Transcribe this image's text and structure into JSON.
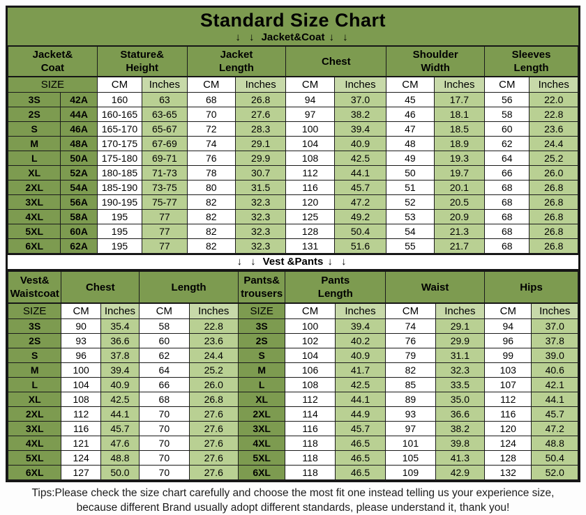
{
  "page": {
    "title": "Standard Size Chart",
    "arrow_pair": "↓ ↓",
    "jacket_section_label": "Jacket&Coat",
    "vest_section_label": "Vest &Pants",
    "tips_line1": "Tips:Please check the size chart carefully and choose the most fit one instead telling us your experience size,",
    "tips_line2": "because different Brand usually adopt different standards, please understand it, thank you!"
  },
  "colors": {
    "band_green": "#7d9b50",
    "inches_light_green": "#b9d093",
    "cm_white": "#ffffff",
    "grid_black": "#1a1a1a"
  },
  "labels": {
    "size": "SIZE",
    "cm": "CM",
    "inches": "Inches"
  },
  "jacket_table": {
    "group_headers": [
      {
        "line1": "Jacket&",
        "line2": "Coat"
      },
      {
        "line1": "Stature&",
        "line2": "Height"
      },
      {
        "line1": "Jacket",
        "line2": "Length"
      },
      {
        "line1": "Chest",
        "line2": ""
      },
      {
        "line1": "Shoulder",
        "line2": "Width"
      },
      {
        "line1": "Sleeves",
        "line2": "Length"
      }
    ],
    "rows": [
      {
        "size": "3S",
        "code": "42A",
        "values": [
          "160",
          "63",
          "68",
          "26.8",
          "94",
          "37.0",
          "45",
          "17.7",
          "56",
          "22.0"
        ]
      },
      {
        "size": "2S",
        "code": "44A",
        "values": [
          "160-165",
          "63-65",
          "70",
          "27.6",
          "97",
          "38.2",
          "46",
          "18.1",
          "58",
          "22.8"
        ]
      },
      {
        "size": "S",
        "code": "46A",
        "values": [
          "165-170",
          "65-67",
          "72",
          "28.3",
          "100",
          "39.4",
          "47",
          "18.5",
          "60",
          "23.6"
        ]
      },
      {
        "size": "M",
        "code": "48A",
        "values": [
          "170-175",
          "67-69",
          "74",
          "29.1",
          "104",
          "40.9",
          "48",
          "18.9",
          "62",
          "24.4"
        ]
      },
      {
        "size": "L",
        "code": "50A",
        "values": [
          "175-180",
          "69-71",
          "76",
          "29.9",
          "108",
          "42.5",
          "49",
          "19.3",
          "64",
          "25.2"
        ]
      },
      {
        "size": "XL",
        "code": "52A",
        "values": [
          "180-185",
          "71-73",
          "78",
          "30.7",
          "112",
          "44.1",
          "50",
          "19.7",
          "66",
          "26.0"
        ]
      },
      {
        "size": "2XL",
        "code": "54A",
        "values": [
          "185-190",
          "73-75",
          "80",
          "31.5",
          "116",
          "45.7",
          "51",
          "20.1",
          "68",
          "26.8"
        ]
      },
      {
        "size": "3XL",
        "code": "56A",
        "values": [
          "190-195",
          "75-77",
          "82",
          "32.3",
          "120",
          "47.2",
          "52",
          "20.5",
          "68",
          "26.8"
        ]
      },
      {
        "size": "4XL",
        "code": "58A",
        "values": [
          "195",
          "77",
          "82",
          "32.3",
          "125",
          "49.2",
          "53",
          "20.9",
          "68",
          "26.8"
        ]
      },
      {
        "size": "5XL",
        "code": "60A",
        "values": [
          "195",
          "77",
          "82",
          "32.3",
          "128",
          "50.4",
          "54",
          "21.3",
          "68",
          "26.8"
        ]
      },
      {
        "size": "6XL",
        "code": "62A",
        "values": [
          "195",
          "77",
          "82",
          "32.3",
          "131",
          "51.6",
          "55",
          "21.7",
          "68",
          "26.8"
        ]
      }
    ]
  },
  "vest_table": {
    "group_headers": [
      {
        "line1": "Vest&",
        "line2": "Waistcoat"
      },
      {
        "line1": "Chest",
        "line2": ""
      },
      {
        "line1": "Length",
        "line2": ""
      },
      {
        "line1": "Pants&",
        "line2": "trousers"
      },
      {
        "line1": "Pants",
        "line2": "Length"
      },
      {
        "line1": "Waist",
        "line2": ""
      },
      {
        "line1": "Hips",
        "line2": ""
      }
    ],
    "rows": [
      {
        "size": "3S",
        "vest_values": [
          "90",
          "35.4",
          "58",
          "22.8"
        ],
        "pants_size": "3S",
        "pants_values": [
          "100",
          "39.4",
          "74",
          "29.1",
          "94",
          "37.0"
        ]
      },
      {
        "size": "2S",
        "vest_values": [
          "93",
          "36.6",
          "60",
          "23.6"
        ],
        "pants_size": "2S",
        "pants_values": [
          "102",
          "40.2",
          "76",
          "29.9",
          "96",
          "37.8"
        ]
      },
      {
        "size": "S",
        "vest_values": [
          "96",
          "37.8",
          "62",
          "24.4"
        ],
        "pants_size": "S",
        "pants_values": [
          "104",
          "40.9",
          "79",
          "31.1",
          "99",
          "39.0"
        ]
      },
      {
        "size": "M",
        "vest_values": [
          "100",
          "39.4",
          "64",
          "25.2"
        ],
        "pants_size": "M",
        "pants_values": [
          "106",
          "41.7",
          "82",
          "32.3",
          "103",
          "40.6"
        ]
      },
      {
        "size": "L",
        "vest_values": [
          "104",
          "40.9",
          "66",
          "26.0"
        ],
        "pants_size": "L",
        "pants_values": [
          "108",
          "42.5",
          "85",
          "33.5",
          "107",
          "42.1"
        ]
      },
      {
        "size": "XL",
        "vest_values": [
          "108",
          "42.5",
          "68",
          "26.8"
        ],
        "pants_size": "XL",
        "pants_values": [
          "112",
          "44.1",
          "89",
          "35.0",
          "112",
          "44.1"
        ]
      },
      {
        "size": "2XL",
        "vest_values": [
          "112",
          "44.1",
          "70",
          "27.6"
        ],
        "pants_size": "2XL",
        "pants_values": [
          "114",
          "44.9",
          "93",
          "36.6",
          "116",
          "45.7"
        ]
      },
      {
        "size": "3XL",
        "vest_values": [
          "116",
          "45.7",
          "70",
          "27.6"
        ],
        "pants_size": "3XL",
        "pants_values": [
          "116",
          "45.7",
          "97",
          "38.2",
          "120",
          "47.2"
        ]
      },
      {
        "size": "4XL",
        "vest_values": [
          "121",
          "47.6",
          "70",
          "27.6"
        ],
        "pants_size": "4XL",
        "pants_values": [
          "118",
          "46.5",
          "101",
          "39.8",
          "124",
          "48.8"
        ]
      },
      {
        "size": "5XL",
        "vest_values": [
          "124",
          "48.8",
          "70",
          "27.6"
        ],
        "pants_size": "5XL",
        "pants_values": [
          "118",
          "46.5",
          "105",
          "41.3",
          "128",
          "50.4"
        ]
      },
      {
        "size": "6XL",
        "vest_values": [
          "127",
          "50.0",
          "70",
          "27.6"
        ],
        "pants_size": "6XL",
        "pants_values": [
          "118",
          "46.5",
          "109",
          "42.9",
          "132",
          "52.0"
        ]
      }
    ]
  }
}
